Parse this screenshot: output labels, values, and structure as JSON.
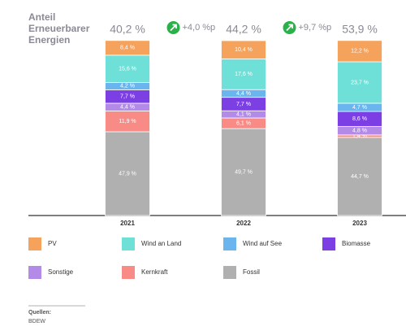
{
  "chart_data": {
    "type": "stacked_bar",
    "title": [
      "Anteil",
      "Erneuerbarer",
      "Energien"
    ],
    "categories": [
      "2021",
      "2022",
      "2023"
    ],
    "ylim": [
      0,
      100
    ],
    "series": [
      {
        "name": "PV",
        "color": "#f5a25d",
        "values": [
          8.4,
          10.4,
          12.2
        ],
        "value_labels": [
          "8,4 %",
          "10,4 %",
          "12,2 %"
        ]
      },
      {
        "name": "Wind an Land",
        "color": "#6ee0d8",
        "values": [
          15.6,
          17.6,
          23.7
        ],
        "value_labels": [
          "15,6 %",
          "17,6 %",
          "23,7 %"
        ]
      },
      {
        "name": "Wind auf See",
        "color": "#6bb5ef",
        "values": [
          4.2,
          4.4,
          4.7
        ],
        "value_labels": [
          "4,2 %",
          "4,4 %",
          "4,7 %"
        ]
      },
      {
        "name": "Biomasse",
        "color": "#7b3fe4",
        "values": [
          7.7,
          7.7,
          8.6
        ],
        "value_labels": [
          "7,7 %",
          "7,7 %",
          "8,6 %"
        ]
      },
      {
        "name": "Sonstige",
        "color": "#b38ae8",
        "values": [
          4.4,
          4.1,
          4.8
        ],
        "value_labels": [
          "4,4 %",
          "4,1 %",
          "4,8 %"
        ]
      },
      {
        "name": "Kernkraft",
        "color": "#f98b86",
        "values": [
          11.9,
          6.1,
          1.4
        ],
        "value_labels": [
          "11,9 %",
          "6,1 %",
          "1,4 %"
        ]
      },
      {
        "name": "Fossil",
        "color": "#b0b0b0",
        "values": [
          47.9,
          49.7,
          44.7
        ],
        "value_labels": [
          "47,9 %",
          "49,7 %",
          "44,7 %"
        ]
      }
    ],
    "totals": {
      "values": [
        40.2,
        44.2,
        53.9
      ],
      "value_labels": [
        "40,2 %",
        "44,2 %",
        "53,9 %"
      ]
    },
    "changes": {
      "values": [
        4.0,
        9.7
      ],
      "value_labels": [
        "+4,0 %p",
        "+9,7 %p"
      ]
    },
    "source": {
      "label": "Quellen:",
      "text": "BDEW"
    }
  }
}
